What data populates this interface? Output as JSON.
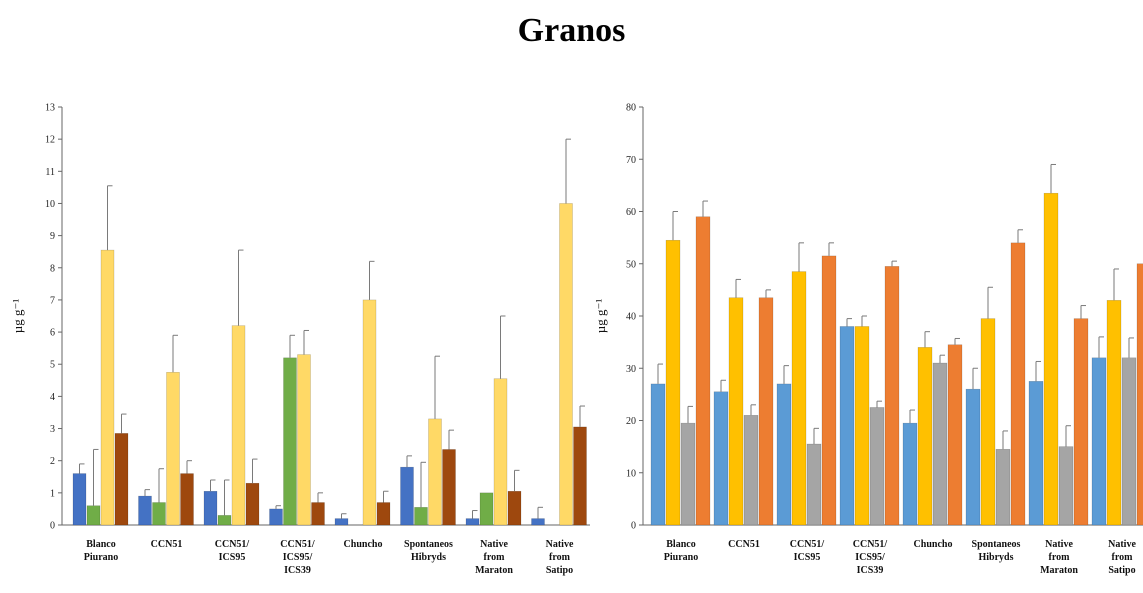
{
  "title": "Granos",
  "chart_data": [
    {
      "type": "bar",
      "ylabel": "µg g⁻¹",
      "xlabel": "",
      "ylim": [
        0,
        13
      ],
      "yticks": [
        0,
        1,
        2,
        3,
        4,
        5,
        6,
        7,
        8,
        9,
        10,
        11,
        12,
        13
      ],
      "grid": false,
      "categories": [
        [
          "Blanco",
          "Piurano"
        ],
        [
          "CCN51"
        ],
        [
          "CCN51/",
          "ICS95"
        ],
        [
          "CCN51/",
          "ICS95/",
          "ICS39"
        ],
        [
          "Chuncho"
        ],
        [
          "Spontaneos",
          "Hibryds"
        ],
        [
          "Native",
          "from",
          "Maraton"
        ],
        [
          "Native",
          "from",
          "Satipo"
        ]
      ],
      "series_colors": [
        "#4472c4",
        "#70ad47",
        "#ffd966",
        "#9e480e"
      ],
      "series": [
        {
          "values": [
            1.6,
            0.9,
            1.05,
            0.5,
            0.2,
            1.8,
            0.2,
            0.2
          ],
          "errors": [
            0.3,
            0.2,
            0.35,
            0.1,
            0.15,
            0.35,
            0.25,
            0.35
          ]
        },
        {
          "values": [
            0.6,
            0.7,
            0.3,
            5.2,
            0,
            0.55,
            1.0,
            0
          ],
          "errors": [
            1.75,
            1.05,
            1.1,
            0.7,
            0,
            1.4,
            0,
            0
          ]
        },
        {
          "values": [
            8.55,
            4.75,
            6.2,
            5.3,
            7.0,
            3.3,
            4.55,
            10.0
          ],
          "errors": [
            2.0,
            1.15,
            2.35,
            0.75,
            1.2,
            1.95,
            1.95,
            2.0
          ]
        },
        {
          "values": [
            2.85,
            1.6,
            1.3,
            0.7,
            0.7,
            2.35,
            1.05,
            3.05
          ],
          "errors": [
            0.6,
            0.4,
            0.75,
            0.3,
            0.35,
            0.6,
            0.65,
            0.65
          ]
        }
      ]
    },
    {
      "type": "bar",
      "ylabel": "µg g⁻¹",
      "xlabel": "",
      "ylim": [
        0,
        80
      ],
      "yticks": [
        0,
        10,
        20,
        30,
        40,
        50,
        60,
        70,
        80
      ],
      "grid": false,
      "categories": [
        [
          "Blanco",
          "Piurano"
        ],
        [
          "CCN51"
        ],
        [
          "CCN51/",
          "ICS95"
        ],
        [
          "CCN51/",
          "ICS95/",
          "ICS39"
        ],
        [
          "Chuncho"
        ],
        [
          "Spontaneos",
          "Hibryds"
        ],
        [
          "Native",
          "from",
          "Maraton"
        ],
        [
          "Native",
          "from",
          "Satipo"
        ]
      ],
      "series_colors": [
        "#5b9bd5",
        "#ffc000",
        "#a5a5a5",
        "#ed7d31"
      ],
      "series": [
        {
          "values": [
            27,
            25.5,
            27,
            38,
            19.5,
            26,
            27.5,
            32
          ],
          "errors": [
            3.8,
            2.2,
            3.5,
            1.5,
            2.5,
            4.0,
            3.8,
            4.0
          ]
        },
        {
          "values": [
            54.5,
            43.5,
            48.5,
            38,
            34,
            39.5,
            63.5,
            43
          ],
          "errors": [
            5.5,
            3.5,
            5.5,
            2.0,
            3.0,
            6.0,
            5.5,
            6.0
          ]
        },
        {
          "values": [
            19.5,
            21,
            15.5,
            22.5,
            31,
            14.5,
            15,
            32
          ],
          "errors": [
            3.2,
            2.0,
            3.0,
            1.2,
            1.5,
            3.5,
            4.0,
            3.8
          ]
        },
        {
          "values": [
            59,
            43.5,
            51.5,
            49.5,
            34.5,
            54,
            39.5,
            50
          ],
          "errors": [
            3.0,
            1.5,
            2.5,
            1.0,
            1.2,
            2.5,
            2.5,
            3.0
          ]
        }
      ]
    }
  ]
}
